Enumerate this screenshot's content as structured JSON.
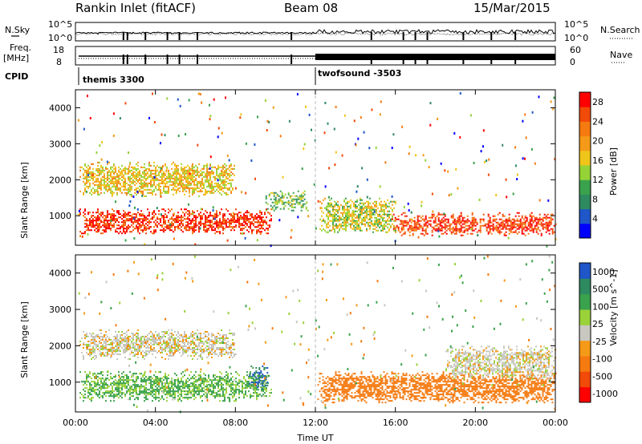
{
  "header": {
    "title": "Rankin Inlet (fitACF)",
    "beam": "Beam 08",
    "date": "15/Mar/2015"
  },
  "summary_panel": {
    "left_label_top": "N.Sky",
    "left_label_mid": "Freq.",
    "left_label_unit": "[MHz]",
    "left_label_cpid": "CPID",
    "right_label_top": "N.Search",
    "right_label_nave": "Nave",
    "nsky_ticks": [
      "10^5",
      "10^0"
    ],
    "nsearch_ticks": [
      "10^5",
      "10^0"
    ],
    "freq_ticks": [
      "18",
      "8"
    ],
    "nave_ticks": [
      "60",
      "0"
    ],
    "cpid_segments": [
      {
        "label": "themis 3300",
        "start_hour": 0.3
      },
      {
        "label": "twofsound -3503",
        "start_hour": 12.0
      }
    ]
  },
  "colors": {
    "power_scale": [
      "#0000ff",
      "#1f56c8",
      "#2e8a60",
      "#3aa24d",
      "#95d236",
      "#f0c51a",
      "#f59a18",
      "#f57a10",
      "#f24a08",
      "#ff0000"
    ],
    "velocity_scale": [
      "#ff0000",
      "#f24a08",
      "#f57a10",
      "#f59a18",
      "#c8c8c0",
      "#9ad23a",
      "#3aa24d",
      "#2e8a60",
      "#1f56c8"
    ]
  },
  "chart_data": [
    {
      "type": "heatmap",
      "title": "Power",
      "xlabel": "",
      "ylabel": "Slant Range [km]",
      "xlim": [
        0,
        24
      ],
      "ylim": [
        180,
        4500
      ],
      "x_ticks": [
        "00:00",
        "04:00",
        "08:00",
        "12:00",
        "16:00",
        "20:00",
        "00:00"
      ],
      "y_ticks": [
        1000,
        2000,
        3000,
        4000
      ],
      "colorbar": {
        "label": "Power [dB]",
        "ticks": [
          4,
          8,
          12,
          16,
          20,
          24,
          28
        ],
        "range": [
          0,
          30
        ]
      },
      "regions": [
        {
          "t_start": 0.2,
          "t_end": 9.8,
          "r_min": 500,
          "r_max": 1200,
          "value": 27
        },
        {
          "t_start": 0.2,
          "t_end": 8.0,
          "r_min": 1550,
          "r_max": 2500,
          "value": 17
        },
        {
          "t_start": 9.5,
          "t_end": 11.6,
          "r_min": 1150,
          "r_max": 1700,
          "value": 12
        },
        {
          "t_start": 12.2,
          "t_end": 16.0,
          "r_min": 500,
          "r_max": 1500,
          "value": 15
        },
        {
          "t_start": 15.8,
          "t_end": 24.0,
          "r_min": 450,
          "r_max": 1100,
          "value": 26
        }
      ]
    },
    {
      "type": "heatmap",
      "title": "Velocity",
      "xlabel": "Time UT",
      "ylabel": "Slant Range [km]",
      "xlim": [
        0,
        24
      ],
      "ylim": [
        180,
        4500
      ],
      "x_ticks": [
        "00:00",
        "04:00",
        "08:00",
        "12:00",
        "16:00",
        "20:00",
        "00:00"
      ],
      "y_ticks": [
        1000,
        2000,
        3000,
        4000
      ],
      "colorbar": {
        "label": "Velocity [m s^-1]",
        "ticks": [
          1000,
          500,
          100,
          25,
          -25,
          -100,
          -500,
          -1000
        ]
      },
      "regions": [
        {
          "t_start": 0.2,
          "t_end": 9.8,
          "r_min": 500,
          "r_max": 1300,
          "value": 120
        },
        {
          "t_start": 0.2,
          "t_end": 8.0,
          "r_min": 1650,
          "r_max": 2450,
          "value": 0
        },
        {
          "t_start": 8.6,
          "t_end": 9.7,
          "r_min": 800,
          "r_max": 1500,
          "value": 900
        },
        {
          "t_start": 12.1,
          "t_end": 24.0,
          "r_min": 450,
          "r_max": 1300,
          "value": -300
        },
        {
          "t_start": 18.5,
          "t_end": 24.0,
          "r_min": 1100,
          "r_max": 2000,
          "value": 0
        }
      ]
    }
  ]
}
